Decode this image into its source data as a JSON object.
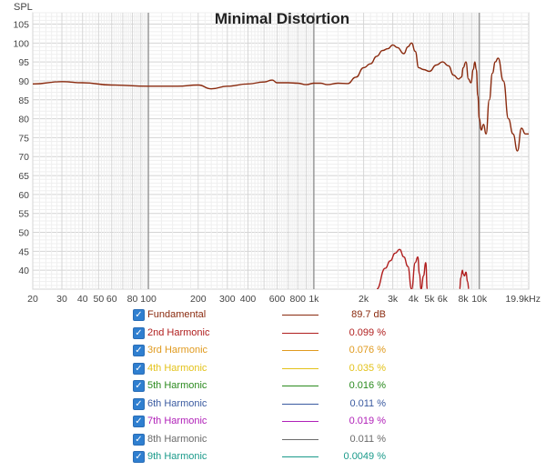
{
  "chart_data": {
    "type": "line",
    "title": "Minimal Distortion",
    "ylabel": "SPL",
    "x_scale": "log",
    "xlim": [
      20,
      19900
    ],
    "ylim": [
      35,
      108
    ],
    "grid": true,
    "y_ticks": [
      105,
      100,
      95,
      90,
      85,
      80,
      75,
      70,
      65,
      60,
      55,
      50,
      45,
      40
    ],
    "x_tick_labels": [
      {
        "f": 20,
        "label": "20"
      },
      {
        "f": 30,
        "label": "30"
      },
      {
        "f": 40,
        "label": "40"
      },
      {
        "f": 50,
        "label": "50"
      },
      {
        "f": 60,
        "label": "60"
      },
      {
        "f": 80,
        "label": "80"
      },
      {
        "f": 100,
        "label": "100"
      },
      {
        "f": 200,
        "label": "200"
      },
      {
        "f": 300,
        "label": "300"
      },
      {
        "f": 400,
        "label": "400"
      },
      {
        "f": 600,
        "label": "600"
      },
      {
        "f": 800,
        "label": "800"
      },
      {
        "f": 1000,
        "label": "1k"
      },
      {
        "f": 2000,
        "label": "2k"
      },
      {
        "f": 3000,
        "label": "3k"
      },
      {
        "f": 4000,
        "label": "4k"
      },
      {
        "f": 5000,
        "label": "5k"
      },
      {
        "f": 6000,
        "label": "6k"
      },
      {
        "f": 8000,
        "label": "8k"
      },
      {
        "f": 10000,
        "label": "10k"
      },
      {
        "f": 19900,
        "label": "19.9kHz"
      }
    ],
    "series": [
      {
        "name": "Fundamental",
        "color": "#8a2a0e",
        "x": [
          20,
          30,
          40,
          60,
          100,
          150,
          200,
          240,
          300,
          400,
          500,
          560,
          600,
          700,
          800,
          900,
          1000,
          1100,
          1200,
          1400,
          1600,
          1800,
          2000,
          2200,
          2400,
          2600,
          2800,
          3000,
          3200,
          3500,
          3700,
          3900,
          4100,
          4300,
          4600,
          5000,
          5500,
          6000,
          6500,
          7000,
          7500,
          7800,
          8000,
          8300,
          8600,
          8900,
          9200,
          9400,
          9600,
          9800,
          10000,
          10300,
          10600,
          11000,
          11500,
          12000,
          12500,
          13000,
          14000,
          15000,
          16000,
          17000,
          18000,
          19000,
          19900
        ],
        "y": [
          89.2,
          89.8,
          89.5,
          88.9,
          88.6,
          88.6,
          88.9,
          87.9,
          88.6,
          89.2,
          89.7,
          90.2,
          89.5,
          89.5,
          89.4,
          89.0,
          89.4,
          89.4,
          89.0,
          89.4,
          89.3,
          91.0,
          93.5,
          94.5,
          96.5,
          98.0,
          98.5,
          99.5,
          98.8,
          97.2,
          99.0,
          100.0,
          97.8,
          93.5,
          93.0,
          92.5,
          94.2,
          95.0,
          94.0,
          91.5,
          90.5,
          91.0,
          93.5,
          95.0,
          90.5,
          89.5,
          93.0,
          95.0,
          93.0,
          86.0,
          80.0,
          77.0,
          78.5,
          76.0,
          85.0,
          92.0,
          95.0,
          96.0,
          90.0,
          80.0,
          76.0,
          71.5,
          77.5,
          76.0,
          76.0
        ]
      },
      {
        "name": "2nd Harmonic",
        "color": "#b01e1e",
        "segments": [
          {
            "x": [
              2400,
              2700,
              2900,
              3100,
              3300,
              3500,
              3700,
              3900,
              4100,
              4250,
              4350,
              4450,
              4600,
              4750,
              4850
            ],
            "y": [
              35,
              40.5,
              42.5,
              44.5,
              45.5,
              43.5,
              41.0,
              35,
              42.0,
              43.5,
              39.0,
              35,
              38.5,
              42.0,
              35
            ]
          },
          {
            "x": [
              7600,
              7750,
              7900,
              8000,
              8150,
              8300,
              8500,
              8650
            ],
            "y": [
              35,
              38.0,
              40.0,
              39.0,
              38.5,
              39.5,
              37.0,
              35
            ]
          }
        ]
      }
    ]
  },
  "legend": [
    {
      "name": "Fundamental",
      "value": "89.7 dB",
      "color": "#8a2a0e"
    },
    {
      "name": "2nd Harmonic",
      "value": "0.099 %",
      "color": "#b01e1e"
    },
    {
      "name": "3rd Harmonic",
      "value": "0.076 %",
      "color": "#e09a1e"
    },
    {
      "name": "4th Harmonic",
      "value": "0.035 %",
      "color": "#e3c21a"
    },
    {
      "name": "5th Harmonic",
      "value": "0.016 %",
      "color": "#2a8a1e"
    },
    {
      "name": "6th Harmonic",
      "value": "0.011 %",
      "color": "#3a5aa0"
    },
    {
      "name": "7th Harmonic",
      "value": "0.019 %",
      "color": "#b020b8"
    },
    {
      "name": "8th Harmonic",
      "value": "0.011 %",
      "color": "#6b6b6b"
    },
    {
      "name": "9th Harmonic",
      "value": "0.0049 %",
      "color": "#1a9a8a"
    }
  ],
  "checkbox_mark": "✓"
}
